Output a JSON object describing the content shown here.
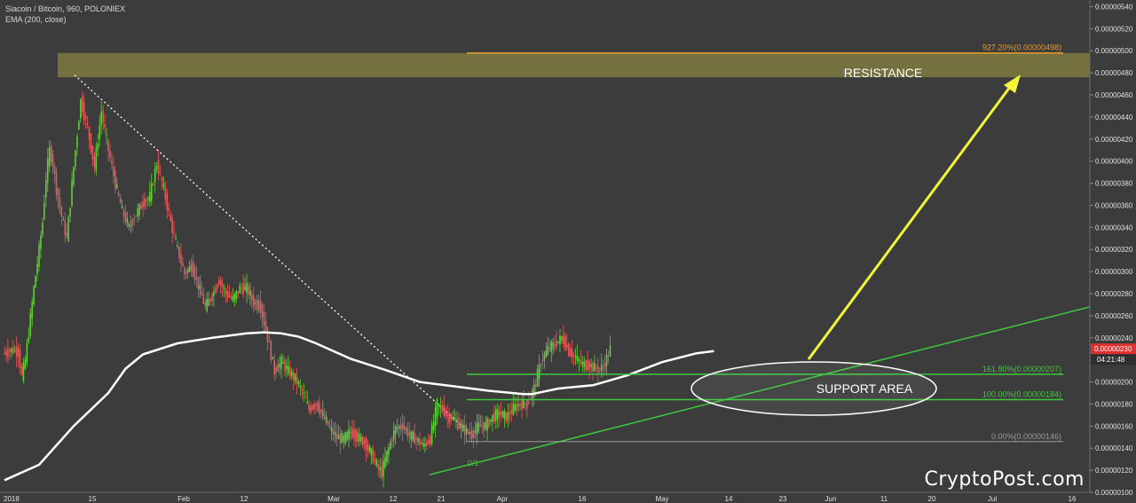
{
  "header": {
    "title": "Siacoin / Bitcoin, 960, POLONIEX",
    "indicator": "EMA (200, close)"
  },
  "watermark": "CryptoPost.com",
  "colors": {
    "background": "#3c3c3c",
    "up": "#5fce3a",
    "down": "#e25a5a",
    "ema": "#ffffff",
    "fib_green": "#3ec83e",
    "fib_gray": "#9a9a9a",
    "resistance_zone": "#7b7540",
    "resistance_line": "#e89a2a",
    "arrow": "#f4f43a",
    "price_tag": "#e03030"
  },
  "chart_data": {
    "type": "line",
    "title": "Siacoin / Bitcoin, 960, POLONIEX",
    "ylim": [
      1e-06,
      5.46e-06
    ],
    "y_ticks": [
      "0.00000540",
      "0.00000520",
      "0.00000500",
      "0.00000480",
      "0.00000460",
      "0.00000440",
      "0.00000420",
      "0.00000400",
      "0.00000380",
      "0.00000360",
      "0.00000340",
      "0.00000320",
      "0.00000300",
      "0.00000280",
      "0.00000260",
      "0.00000240",
      "0.00000220",
      "0.00000200",
      "0.00000180",
      "0.00000160",
      "0.00000140",
      "0.00000120",
      "0.00000100"
    ],
    "x_ticks": [
      "2018",
      "15",
      "Feb",
      "12",
      "Mar",
      "12",
      "21",
      "Apr",
      "16",
      "May",
      "14",
      "23",
      "Jun",
      "11",
      "20",
      "Jul",
      "16"
    ],
    "series": [
      {
        "name": "",
        "x": [
          0,
          4,
          8,
          10,
          12,
          14,
          17,
          20,
          22,
          24,
          26,
          28,
          30,
          33,
          36,
          40,
          44,
          48,
          52,
          56,
          60,
          64,
          68,
          72,
          76,
          80,
          84,
          88,
          92,
          96,
          100,
          104,
          108,
          112,
          116,
          120,
          124,
          128,
          132,
          136,
          140,
          144,
          148,
          152,
          156,
          160,
          164,
          168,
          172,
          176,
          180,
          184,
          188,
          192,
          196,
          200,
          204,
          208,
          212,
          214,
          216,
          218,
          220,
          222,
          224,
          226,
          230,
          234,
          238,
          242,
          246,
          250,
          254,
          256,
          258,
          262,
          266,
          270,
          274,
          278,
          282,
          286,
          290,
          294,
          296,
          298,
          302,
          306,
          310,
          314,
          318,
          322,
          326,
          330,
          334,
          338,
          342,
          346,
          350
        ],
        "values": [
          2.26e-06,
          2.29e-06,
          2.27e-06,
          2.05e-06,
          2.2e-06,
          2.45e-06,
          2.85e-06,
          3.2e-06,
          3.45e-06,
          3.85e-06,
          4.1e-06,
          3.98e-06,
          3.75e-06,
          3.5e-06,
          3.3e-06,
          3.95e-06,
          4.55e-06,
          4.3e-06,
          3.95e-06,
          4.45e-06,
          4.1e-06,
          3.8e-06,
          3.55e-06,
          3.4e-06,
          3.52e-06,
          3.62e-06,
          3.68e-06,
          3.98e-06,
          3.75e-06,
          3.45e-06,
          3.2e-06,
          2.98e-06,
          3.05e-06,
          2.88e-06,
          2.68e-06,
          2.78e-06,
          2.92e-06,
          2.8e-06,
          2.75e-06,
          2.85e-06,
          2.85e-06,
          2.72e-06,
          2.68e-06,
          2.4e-06,
          2.1e-06,
          2.18e-06,
          2.1e-06,
          2.03e-06,
          1.92e-06,
          1.75e-06,
          1.8e-06,
          1.7e-06,
          1.58e-06,
          1.5e-06,
          1.48e-06,
          1.55e-06,
          1.5e-06,
          1.45e-06,
          1.35e-06,
          1.28e-06,
          1.22e-06,
          1.18e-06,
          1.3e-06,
          1.4e-06,
          1.5e-06,
          1.58e-06,
          1.6e-06,
          1.52e-06,
          1.48e-06,
          1.42e-06,
          1.48e-06,
          1.8e-06,
          1.74e-06,
          1.68e-06,
          1.68e-06,
          1.62e-06,
          1.56e-06,
          1.52e-06,
          1.6e-06,
          1.6e-06,
          1.68e-06,
          1.72e-06,
          1.68e-06,
          1.76e-06,
          1.78e-06,
          1.8e-06,
          1.8e-06,
          1.94e-06,
          2.18e-06,
          2.3e-06,
          2.34e-06,
          2.4e-06,
          2.28e-06,
          2.22e-06,
          2.16e-06,
          2.15e-06,
          2.12e-06,
          2.13e-06,
          2.3e-06
        ]
      },
      {
        "name": "",
        "x": [
          0,
          20,
          40,
          60,
          70,
          80,
          100,
          120,
          140,
          150,
          160,
          170,
          180,
          200,
          220,
          240,
          260,
          280,
          300,
          305,
          320,
          340,
          360,
          380,
          400,
          410
        ],
        "values": [
          1.11e-06,
          1.25e-06,
          1.6e-06,
          1.9e-06,
          2.12e-06,
          2.25e-06,
          2.35e-06,
          2.4e-06,
          2.44e-06,
          2.45e-06,
          2.44e-06,
          2.41e-06,
          2.35e-06,
          2.21e-06,
          2.11e-06,
          2e-06,
          1.96e-06,
          1.92e-06,
          1.89e-06,
          1.89e-06,
          1.94e-06,
          1.97e-06,
          2.06e-06,
          2.18e-06,
          2.26e-06,
          2.28e-06
        ]
      }
    ],
    "levels": [
      {
        "label": "927.20%(0.00000498)",
        "value": 4.98e-06
      },
      {
        "label": "161.80%(0.00000207)",
        "value": 2.07e-06
      },
      {
        "label": "100.00%(0.00000184)",
        "value": 1.84e-06
      },
      {
        "label": "0.00%(0.00000146)",
        "value": 1.46e-06
      }
    ],
    "resistance_zone": [
      4.76e-06,
      4.98e-06
    ],
    "annotations": {
      "resistance": "RESISTANCE",
      "support": "SUPPORT AREA",
      "fib_marker": "0/1"
    },
    "last_price": "0.00000230",
    "countdown": "04:21:48",
    "grid": false
  }
}
